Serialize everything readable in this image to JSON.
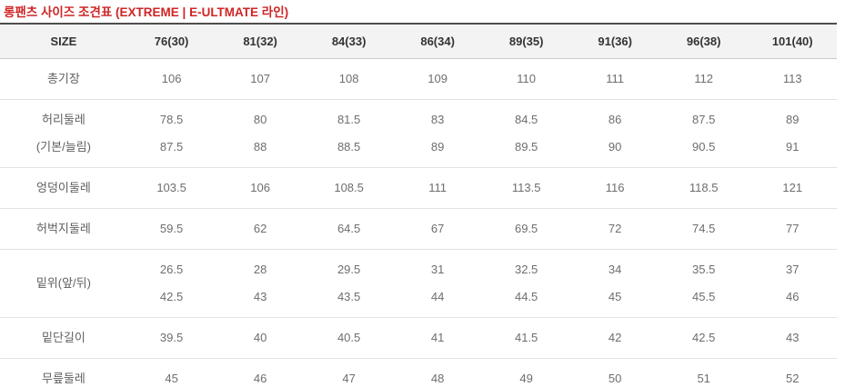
{
  "title": "롱팬츠 사이즈 조견표 (EXTREME | E-ULTMATE 라인)",
  "accent_color": "#cf2525",
  "header_bg_color": "#f4f3f3",
  "table_top_border_color": "#4d4d4d",
  "chart_data": {
    "type": "table",
    "title": "롱팬츠 사이즈 조견표 (EXTREME | E-ULTMATE 라인)",
    "columns": [
      "SIZE",
      "76(30)",
      "81(32)",
      "84(33)",
      "86(34)",
      "89(35)",
      "91(36)",
      "96(38)",
      "101(40)"
    ],
    "rows": [
      {
        "label_lines": [
          "총기장"
        ],
        "value_lines": [
          [
            106,
            107,
            108,
            109,
            110,
            111,
            112,
            113
          ]
        ]
      },
      {
        "label_lines": [
          "허리둘레",
          "(기본/늘림)"
        ],
        "value_lines": [
          [
            78.5,
            80,
            81.5,
            83,
            84.5,
            86,
            87.5,
            89
          ],
          [
            87.5,
            88,
            88.5,
            89,
            89.5,
            90,
            90.5,
            91
          ]
        ]
      },
      {
        "label_lines": [
          "엉덩이둘레"
        ],
        "value_lines": [
          [
            103.5,
            106,
            108.5,
            111,
            113.5,
            116,
            118.5,
            121
          ]
        ]
      },
      {
        "label_lines": [
          "허벅지둘레"
        ],
        "value_lines": [
          [
            59.5,
            62,
            64.5,
            67,
            69.5,
            72,
            74.5,
            77
          ]
        ]
      },
      {
        "label_lines": [
          "밑위(앞/뒤)"
        ],
        "value_lines": [
          [
            26.5,
            28,
            29.5,
            31,
            32.5,
            34,
            35.5,
            37
          ],
          [
            42.5,
            43,
            43.5,
            44,
            44.5,
            45,
            45.5,
            46
          ]
        ]
      },
      {
        "label_lines": [
          "밑단길이"
        ],
        "value_lines": [
          [
            39.5,
            40,
            40.5,
            41,
            41.5,
            42,
            42.5,
            43
          ]
        ]
      },
      {
        "label_lines": [
          "무릎둘레"
        ],
        "value_lines": [
          [
            45,
            46,
            47,
            48,
            49,
            50,
            51,
            52
          ]
        ]
      }
    ]
  }
}
